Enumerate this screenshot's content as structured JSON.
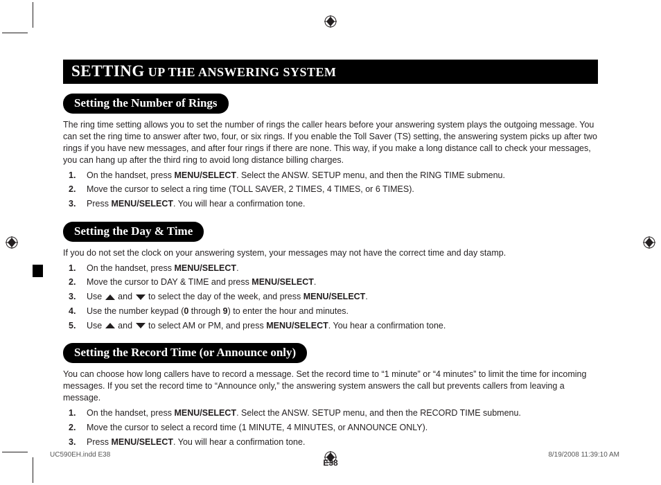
{
  "header": {
    "big": "SETTING",
    "rest": " UP THE ANSWERING SYSTEM"
  },
  "sections": [
    {
      "title": "Setting the Number of Rings",
      "intro": "The ring time setting allows you to set the number of rings the caller hears before your answering system plays the outgoing message. You can set the ring time to answer after two, four, or six rings. If you enable the Toll Saver (TS) setting, the answering system picks up after two rings if you have new messages, and after four rings if there are none. This way, if you make a long distance call to check your messages, you can hang up after the third ring to avoid long distance billing charges.",
      "steps": [
        [
          {
            "t": "On the handset, press "
          },
          {
            "t": "MENU/SELECT",
            "b": true
          },
          {
            "t": ". Select the ANSW. SETUP menu, and then the RING TIME submenu."
          }
        ],
        [
          {
            "t": "Move the cursor to select a ring time (TOLL SAVER, 2 TIMES, 4 TIMES, or 6 TIMES)."
          }
        ],
        [
          {
            "t": "Press "
          },
          {
            "t": "MENU/SELECT",
            "b": true
          },
          {
            "t": ". You will hear a confirmation tone."
          }
        ]
      ]
    },
    {
      "title": "Setting the Day & Time",
      "intro": "If you do not set the clock on your answering system, your messages may not have the correct time and day stamp.",
      "steps": [
        [
          {
            "t": "On the handset, press "
          },
          {
            "t": "MENU/SELECT",
            "b": true
          },
          {
            "t": "."
          }
        ],
        [
          {
            "t": "Move the cursor to DAY & TIME and press "
          },
          {
            "t": "MENU/SELECT",
            "b": true
          },
          {
            "t": "."
          }
        ],
        [
          {
            "t": "Use "
          },
          {
            "arrow": "up"
          },
          {
            "t": " and "
          },
          {
            "arrow": "down"
          },
          {
            "t": " to select the day of the week, and press "
          },
          {
            "t": "MENU/SELECT",
            "b": true
          },
          {
            "t": "."
          }
        ],
        [
          {
            "t": "Use the number keypad ("
          },
          {
            "t": "0",
            "b": true
          },
          {
            "t": " through "
          },
          {
            "t": "9",
            "b": true
          },
          {
            "t": ") to enter the hour and minutes."
          }
        ],
        [
          {
            "t": "Use "
          },
          {
            "arrow": "up"
          },
          {
            "t": " and "
          },
          {
            "arrow": "down"
          },
          {
            "t": " to select AM or PM, and press "
          },
          {
            "t": "MENU/SELECT",
            "b": true
          },
          {
            "t": ". You hear a confirmation tone."
          }
        ]
      ]
    },
    {
      "title": "Setting the Record Time (or Announce only)",
      "intro": "You can choose how long callers have to record a message. Set the record time to “1 minute” or “4 minutes” to limit the time for incoming messages. If you set the record time to “Announce only,” the answering system answers the call but prevents callers from leaving a message.",
      "steps": [
        [
          {
            "t": "On the handset, press "
          },
          {
            "t": "MENU/SELECT",
            "b": true
          },
          {
            "t": ". Select the ANSW. SETUP menu, and then the RECORD TIME submenu."
          }
        ],
        [
          {
            "t": "Move the cursor to select a record time (1 MINUTE, 4 MINUTES, or ANNOUNCE ONLY)."
          }
        ],
        [
          {
            "t": "Press "
          },
          {
            "t": "MENU/SELECT",
            "b": true
          },
          {
            "t": ". You will hear a confirmation tone."
          }
        ]
      ]
    }
  ],
  "pageNum": "E38",
  "footer": {
    "left": "UC590EH.indd   E38",
    "right": "8/19/2008   11:39:10 AM"
  }
}
